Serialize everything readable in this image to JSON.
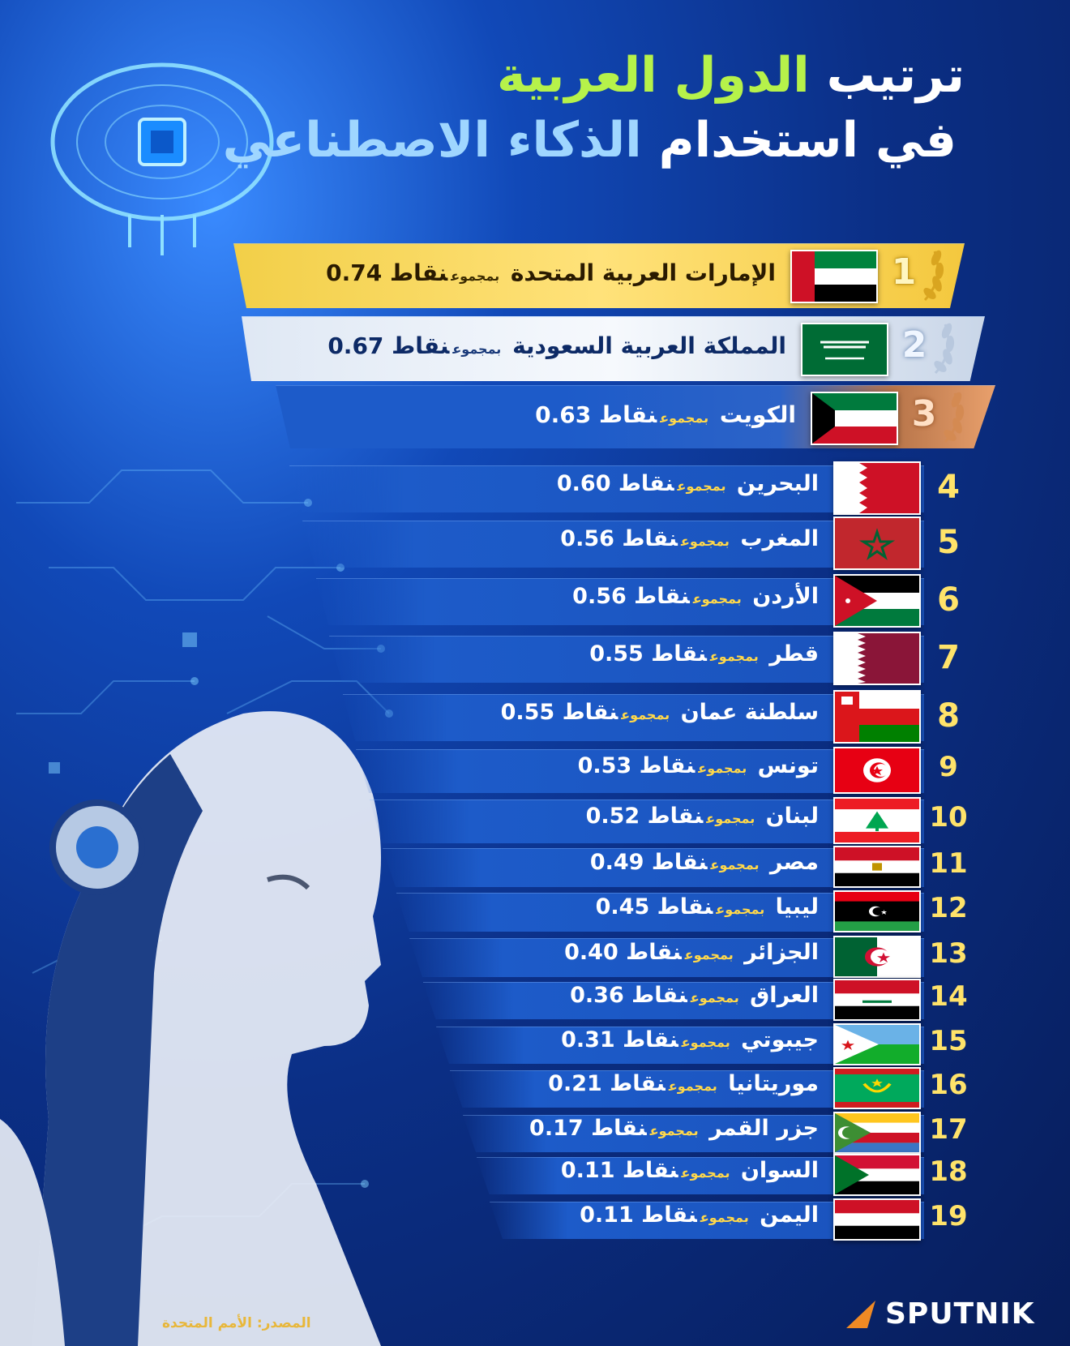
{
  "title": {
    "line1_part1": "ترتيب ",
    "line1_part2": "الدول العربية",
    "line2_part1": "في استخدام ",
    "line2_part2": "الذكاء الاصطناعي"
  },
  "labels": {
    "mid": "بمجموع",
    "points": "نقاط"
  },
  "chart_data": {
    "type": "table",
    "columns": [
      "rank",
      "country",
      "score"
    ],
    "rows": [
      {
        "rank": "1",
        "country": "الإمارات العربية المتحدة",
        "score": "0.74"
      },
      {
        "rank": "2",
        "country": "المملكة العربية السعودية",
        "score": "0.67"
      },
      {
        "rank": "3",
        "country": "الكويت",
        "score": "0.63"
      },
      {
        "rank": "4",
        "country": "البحرين",
        "score": "0.60"
      },
      {
        "rank": "5",
        "country": "المغرب",
        "score": "0.56"
      },
      {
        "rank": "6",
        "country": "الأردن",
        "score": "0.56"
      },
      {
        "rank": "7",
        "country": "قطر",
        "score": "0.55"
      },
      {
        "rank": "8",
        "country": "سلطنة عمان",
        "score": "0.55"
      },
      {
        "rank": "9",
        "country": "تونس",
        "score": "0.53"
      },
      {
        "rank": "10",
        "country": "لبنان",
        "score": "0.52"
      },
      {
        "rank": "11",
        "country": "مصر",
        "score": "0.49"
      },
      {
        "rank": "12",
        "country": "ليبيا",
        "score": "0.45"
      },
      {
        "rank": "13",
        "country": "الجزائر",
        "score": "0.40"
      },
      {
        "rank": "14",
        "country": "العراق",
        "score": "0.36"
      },
      {
        "rank": "15",
        "country": "جيبوتي",
        "score": "0.31"
      },
      {
        "rank": "16",
        "country": "موريتانيا",
        "score": "0.21"
      },
      {
        "rank": "17",
        "country": "جزر القمر",
        "score": "0.17"
      },
      {
        "rank": "18",
        "country": "السوان",
        "score": "0.11"
      },
      {
        "rank": "19",
        "country": "اليمن",
        "score": "0.11"
      }
    ]
  },
  "flags": [
    "uae-flag-icon",
    "saudi-flag-icon",
    "kuwait-flag-icon",
    "bahrain-flag-icon",
    "morocco-flag-icon",
    "jordan-flag-icon",
    "qatar-flag-icon",
    "oman-flag-icon",
    "tunisia-flag-icon",
    "lebanon-flag-icon",
    "egypt-flag-icon",
    "libya-flag-icon",
    "algeria-flag-icon",
    "iraq-flag-icon",
    "djibouti-flag-icon",
    "mauritania-flag-icon",
    "comoros-flag-icon",
    "sudan-flag-icon",
    "yemen-flag-icon"
  ],
  "colors": {
    "gold": "#f4c83e",
    "silver": "#dfe8f4",
    "bronze": "#e9a06c",
    "rank_number": "#ffe36a",
    "accent_green": "#b6f24a",
    "accent_blue": "#9fd6ff"
  },
  "footer": {
    "source": "المصدر: الأمم المتحدة",
    "logo": "SPUTNIK"
  }
}
